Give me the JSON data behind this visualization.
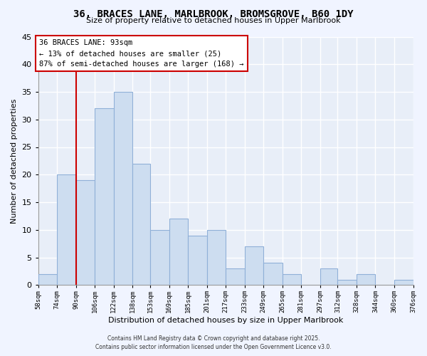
{
  "title": "36, BRACES LANE, MARLBROOK, BROMSGROVE, B60 1DY",
  "subtitle": "Size of property relative to detached houses in Upper Marlbrook",
  "xlabel": "Distribution of detached houses by size in Upper Marlbrook",
  "ylabel": "Number of detached properties",
  "bar_color": "#cdddf0",
  "bar_edge_color": "#90b0d8",
  "background_color": "#f0f4ff",
  "plot_bg_color": "#e8eef8",
  "bins": [
    58,
    74,
    90,
    106,
    122,
    138,
    153,
    169,
    185,
    201,
    217,
    233,
    249,
    265,
    281,
    297,
    312,
    328,
    344,
    360,
    376
  ],
  "bin_labels": [
    "58sqm",
    "74sqm",
    "90sqm",
    "106sqm",
    "122sqm",
    "138sqm",
    "153sqm",
    "169sqm",
    "185sqm",
    "201sqm",
    "217sqm",
    "233sqm",
    "249sqm",
    "265sqm",
    "281sqm",
    "297sqm",
    "312sqm",
    "328sqm",
    "344sqm",
    "360sqm",
    "376sqm"
  ],
  "counts": [
    2,
    20,
    19,
    32,
    35,
    22,
    10,
    12,
    9,
    10,
    3,
    7,
    4,
    2,
    0,
    3,
    1,
    2,
    0,
    1
  ],
  "ylim": [
    0,
    45
  ],
  "yticks": [
    0,
    5,
    10,
    15,
    20,
    25,
    30,
    35,
    40,
    45
  ],
  "property_size": 93,
  "property_label": "36 BRACES LANE: 93sqm",
  "annotation_line1": "← 13% of detached houses are smaller (25)",
  "annotation_line2": "87% of semi-detached houses are larger (168) →",
  "vline_x": 90,
  "vline_color": "#cc0000",
  "grid_color": "#ffffff",
  "footer_line1": "Contains HM Land Registry data © Crown copyright and database right 2025.",
  "footer_line2": "Contains public sector information licensed under the Open Government Licence v3.0."
}
